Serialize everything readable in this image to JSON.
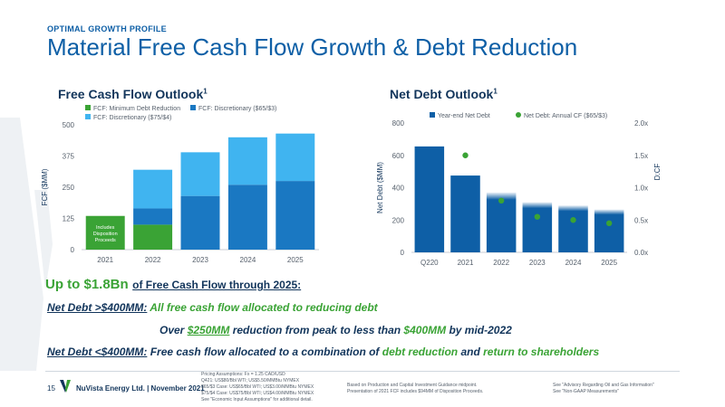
{
  "header": {
    "eyebrow": "OPTIMAL GROWTH PROFILE",
    "title": "Material Free Cash Flow Growth & Debt Reduction"
  },
  "chart_data": [
    {
      "type": "bar",
      "stacked": true,
      "title": "Free Cash Flow Outlook",
      "title_note": "1",
      "ylabel": "FCF ($MM)",
      "ylim": [
        0,
        500
      ],
      "yticks": [
        0,
        125,
        250,
        375,
        500
      ],
      "categories": [
        "2021",
        "2022",
        "2023",
        "2024",
        "2025"
      ],
      "series": [
        {
          "name": "FCF: Minimum Debt Reduction",
          "color": "#3aa335",
          "values": [
            135,
            100,
            0,
            0,
            0
          ]
        },
        {
          "name": "FCF: Discretionary ($65/$3)",
          "color": "#1a78c2",
          "values": [
            0,
            65,
            215,
            260,
            275
          ]
        },
        {
          "name": "FCF: Discretionary ($75/$4)",
          "color": "#40b4f0",
          "values": [
            0,
            155,
            175,
            190,
            190
          ]
        }
      ],
      "annotation": "Includes Disposition Proceeds",
      "legend": "top",
      "grid": false
    },
    {
      "type": "bar+scatter",
      "title": "Net Debt Outlook",
      "title_note": "1",
      "ylabel": "Net Debt ($MM)",
      "y2label": "D:CF",
      "ylim": [
        0,
        800
      ],
      "yticks": [
        0,
        200,
        400,
        600,
        800
      ],
      "y2lim": [
        0,
        2
      ],
      "y2ticks": [
        "0.0x",
        "0.5x",
        "1.0x",
        "1.5x",
        "2.0x"
      ],
      "y2tick_values": [
        0,
        0.5,
        1.0,
        1.5,
        2.0
      ],
      "categories": [
        "Q220",
        "2021",
        "2022",
        "2023",
        "2024",
        "2025"
      ],
      "series": [
        {
          "name": "Year-end Net Debt",
          "color": "#0e5fa6",
          "type": "bar",
          "values": [
            655,
            475,
            370,
            310,
            290,
            265
          ]
        },
        {
          "name": "Net Debt: Annual CF ($65/$3)",
          "color": "#3aa335",
          "type": "scatter",
          "axis": "y2",
          "values": [
            null,
            1.5,
            0.8,
            0.55,
            0.5,
            0.45
          ]
        }
      ],
      "legend": "top",
      "grid": false
    }
  ],
  "headline": {
    "big": "Up to $1.8Bn",
    "rest": "of Free Cash Flow through 2025:"
  },
  "lines": {
    "l1_label": "Net Debt >$400MM:",
    "l1_text": "All free cash flow allocated to reducing debt",
    "l2_a": "Over ",
    "l2_amount": "$250MM",
    "l2_b": " reduction from peak to less than ",
    "l2_c": "$400MM",
    "l2_d": " by mid-2022",
    "l3_label": "Net Debt <$400MM:",
    "l3_a": "Free cash flow allocated to a combination of ",
    "l3_debt": "debt reduction",
    "l3_and": " and ",
    "l3_ret": "return to shareholders"
  },
  "footer": {
    "page_number": "15",
    "company": "NuVista Energy Ltd. | November 2021",
    "note1": [
      "Pricing Assumptions:    Fx = 1.25 CAD/USD",
      "Q421: US$80/Bbl WTI; US$5.50/MMBtu NYMEX",
      "$65/$3 Case: US$65/Bbl WTI; US$3.00/MMBtu NYMEX",
      "$75/$4 Case: US$75/Bbl WTI; US$4.00/MMBtu NYMEX",
      "See \"Economic Input Assumptions\" for additional detail."
    ],
    "note2": [
      "Based on Production and Capital Investment Guidance midpoint.",
      "Presentation of 2021 FCF includes $94MM of Disposition Proceeds."
    ],
    "note3": [
      "See \"Advisory Regarding Oil and Gas Information\"",
      "See \"Non-GAAP Measurements\""
    ]
  },
  "colors": {
    "brand_blue": "#0e5fa6",
    "dark_navy": "#12355b",
    "accent_green": "#3aa335"
  }
}
